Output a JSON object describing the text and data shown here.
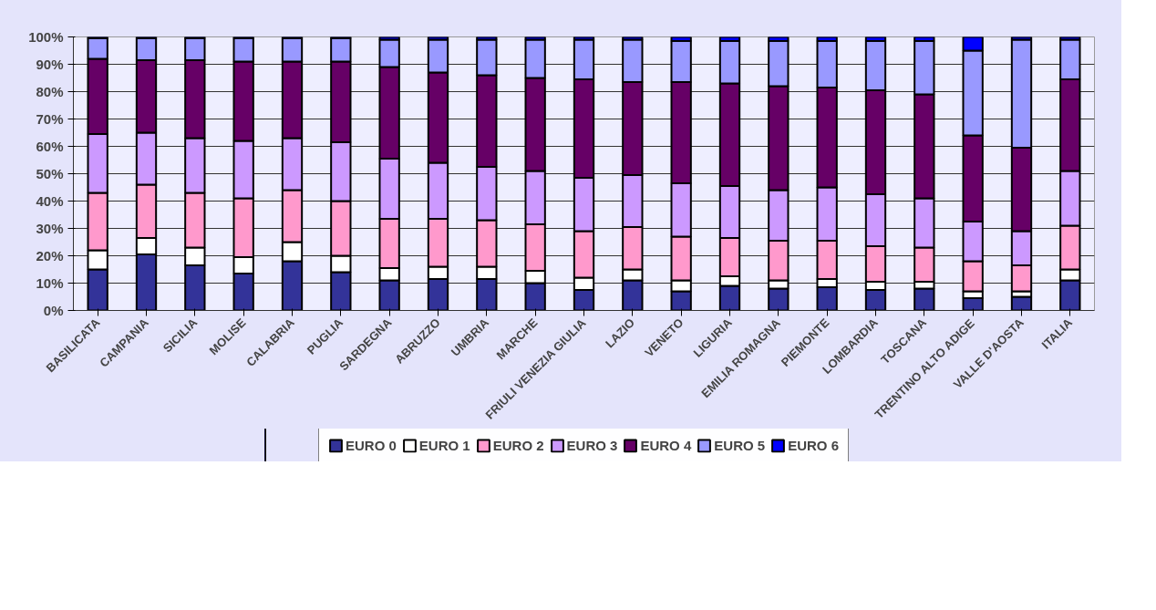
{
  "chart_data": {
    "type": "bar",
    "stacked": true,
    "categories": [
      "BASILICATA",
      "CAMPANIA",
      "SICILIA",
      "MOLISE",
      "CALABRIA",
      "PUGLIA",
      "SARDEGNA",
      "ABRUZZO",
      "UMBRIA",
      "MARCHE",
      "FRIULI VENEZIA GIULIA",
      "LAZIO",
      "VENETO",
      "LIGURIA",
      "EMILIA ROMAGNA",
      "PIEMONTE",
      "LOMBARDIA",
      "TOSCANA",
      "TRENTINO ALTO ADIGE",
      "VALLE D'AOSTA",
      "ITALIA"
    ],
    "series": [
      {
        "name": "EURO 0",
        "color": "#333399",
        "values": [
          15,
          20.5,
          16.5,
          13.5,
          18,
          14,
          11,
          11.5,
          11.5,
          10,
          7.5,
          11,
          7,
          9,
          8,
          8.5,
          7.5,
          8,
          4.5,
          5,
          11
        ]
      },
      {
        "name": "EURO 1",
        "color": "#ffffff",
        "values": [
          7,
          6,
          6.5,
          6,
          7,
          6,
          4.5,
          4.5,
          4.5,
          4.5,
          4.5,
          4,
          4,
          3.5,
          3,
          3,
          3,
          2.5,
          2.5,
          2,
          4
        ]
      },
      {
        "name": "EURO 2",
        "color": "#ff99cc",
        "values": [
          21,
          19.5,
          20,
          21.5,
          19,
          20,
          18,
          17.5,
          17,
          17,
          17,
          15.5,
          16,
          14,
          14.5,
          14,
          13,
          12.5,
          11,
          9.5,
          16
        ]
      },
      {
        "name": "EURO 3",
        "color": "#cc99ff",
        "values": [
          21.5,
          19,
          20,
          21,
          19,
          21.5,
          22,
          20.5,
          19.5,
          19.5,
          19.5,
          19,
          19.5,
          19,
          18.5,
          19.5,
          19,
          18,
          14.5,
          12.5,
          20
        ]
      },
      {
        "name": "EURO 4",
        "color": "#660066",
        "values": [
          27.5,
          26.5,
          28.5,
          29,
          28,
          29.5,
          33.5,
          33,
          33.5,
          34,
          36,
          34,
          37,
          37.5,
          38,
          36.5,
          38,
          38,
          31.5,
          30.5,
          33.5
        ]
      },
      {
        "name": "EURO 5",
        "color": "#9999ff",
        "values": [
          7.5,
          8,
          8,
          8.5,
          8.5,
          8.5,
          10,
          12,
          13,
          14,
          14.5,
          15.5,
          15,
          15.5,
          16.5,
          17,
          18,
          19.5,
          31,
          39.5,
          14.5
        ]
      },
      {
        "name": "EURO 6",
        "color": "#0000ff",
        "values": [
          0.5,
          0.5,
          0.5,
          0.5,
          0.5,
          0.5,
          1,
          1,
          1,
          1,
          1,
          1,
          1.5,
          1.5,
          1.5,
          1.5,
          1.5,
          1.5,
          5,
          1,
          1
        ]
      }
    ],
    "ylim": [
      0,
      100
    ],
    "yticks": [
      {
        "value": 0,
        "label": "0%"
      },
      {
        "value": 10,
        "label": "10%"
      },
      {
        "value": 20,
        "label": "20%"
      },
      {
        "value": 30,
        "label": "30%"
      },
      {
        "value": 40,
        "label": "40%"
      },
      {
        "value": 50,
        "label": "50%"
      },
      {
        "value": 60,
        "label": "60%"
      },
      {
        "value": 70,
        "label": "70%"
      },
      {
        "value": 80,
        "label": "80%"
      },
      {
        "value": 90,
        "label": "90%"
      },
      {
        "value": 100,
        "label": "100%"
      }
    ],
    "grid": "y",
    "legend": "bottom"
  }
}
